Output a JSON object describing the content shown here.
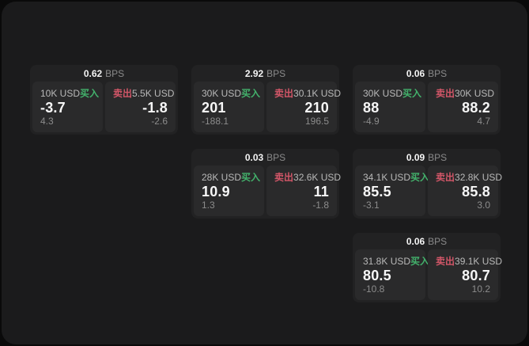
{
  "labels": {
    "bps_unit": "BPS",
    "buy": "买入",
    "sell": "卖出"
  },
  "colors": {
    "buy_green": "#43b26c",
    "sell_red": "#d25668",
    "card_bg": "#1b1b1c",
    "panel_bg": "#222223",
    "cell_bg": "#2a2a2b"
  },
  "panels": [
    {
      "row": 1,
      "col": 1,
      "bps": "0.62",
      "buy": {
        "amount": "10K USD",
        "price": "-3.7",
        "delta": "4.3"
      },
      "sell": {
        "amount": "5.5K USD",
        "price": "-1.8",
        "delta": "-2.6"
      }
    },
    {
      "row": 1,
      "col": 2,
      "bps": "2.92",
      "buy": {
        "amount": "30K USD",
        "price": "201",
        "delta": "-188.1"
      },
      "sell": {
        "amount": "30.1K USD",
        "price": "210",
        "delta": "196.5"
      }
    },
    {
      "row": 1,
      "col": 3,
      "bps": "0.06",
      "buy": {
        "amount": "30K USD",
        "price": "88",
        "delta": "-4.9"
      },
      "sell": {
        "amount": "30K USD",
        "price": "88.2",
        "delta": "4.7"
      }
    },
    {
      "row": 2,
      "col": 2,
      "bps": "0.03",
      "buy": {
        "amount": "28K USD",
        "price": "10.9",
        "delta": "1.3"
      },
      "sell": {
        "amount": "32.6K USD",
        "price": "11",
        "delta": "-1.8"
      }
    },
    {
      "row": 2,
      "col": 3,
      "bps": "0.09",
      "buy": {
        "amount": "34.1K USD",
        "price": "85.5",
        "delta": "-3.1"
      },
      "sell": {
        "amount": "32.8K USD",
        "price": "85.8",
        "delta": "3.0"
      }
    },
    {
      "row": 3,
      "col": 3,
      "bps": "0.06",
      "buy": {
        "amount": "31.8K USD",
        "price": "80.5",
        "delta": "-10.8"
      },
      "sell": {
        "amount": "39.1K USD",
        "price": "80.7",
        "delta": "10.2"
      }
    }
  ]
}
